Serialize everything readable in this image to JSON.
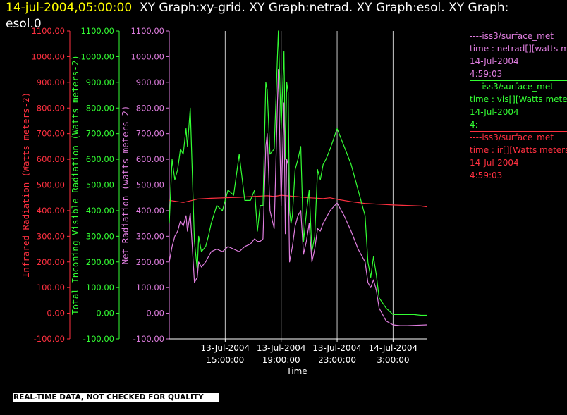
{
  "header": {
    "timestamp": "14-jul-2004,05:00:00",
    "title_rest": "XY Graph:xy-grid.  XY Graph:netrad.  XY Graph:esol.  XY Graph:",
    "title_line2": "esol.0"
  },
  "legend": [
    {
      "lines": [
        "----iss3/surface_met",
        "time : netrad[][watts meters-2]",
        "14-Jul-2004",
        "4:59:03"
      ],
      "color": "#e07ee0"
    },
    {
      "lines": [
        "----iss3/surface_met",
        "time : vis[][Watts meters-2]",
        "14-Jul-2004",
        "4:"
      ],
      "color": "#33ff33"
    },
    {
      "lines": [
        "----iss3/surface_met",
        "time : ir[][Watts meters-2]",
        "14-Jul-2004",
        "4:59:03"
      ],
      "color": "#ff3040"
    }
  ],
  "notice": "REAL-TIME DATA, NOT CHECKED FOR QUALITY",
  "colors": {
    "ir": "#ff3040",
    "vis": "#33ff33",
    "netrad": "#e07ee0",
    "text": "#ffffff",
    "grid": "#c8c8c8"
  },
  "chart_data": {
    "type": "line",
    "xlabel": "Time",
    "x_ticks": [
      {
        "hour": 15,
        "label": [
          "13-Jul-2004",
          "15:00:00"
        ]
      },
      {
        "hour": 19,
        "label": [
          "13-Jul-2004",
          "19:00:00"
        ]
      },
      {
        "hour": 23,
        "label": [
          "13-Jul-2004",
          "23:00:00"
        ]
      },
      {
        "hour": 27,
        "label": [
          "14-Jul-2004",
          "3:00:00"
        ]
      }
    ],
    "xlim_hours": [
      11.0,
      29.4
    ],
    "grid_x_hours": [
      15,
      19,
      23,
      27
    ],
    "y_axes": [
      {
        "key": "ir",
        "label": "Infrared Radiation (Watts meters-2)",
        "ylim": [
          -100,
          1100
        ],
        "ticks": [
          "-100.00",
          "0.00",
          "100.00",
          "200.00",
          "300.00",
          "400.00",
          "500.00",
          "600.00",
          "700.00",
          "800.00",
          "900.00",
          "1000.00",
          "1100.00"
        ]
      },
      {
        "key": "vis",
        "label": "Total Incoming Visible Radiation (Watts meters-2)",
        "ylim": [
          -100,
          1100
        ],
        "ticks": [
          "-100.00",
          "0.00",
          "100.00",
          "200.00",
          "300.00",
          "400.00",
          "500.00",
          "600.00",
          "700.00",
          "800.00",
          "900.00",
          "1000.00",
          "1100.00"
        ]
      },
      {
        "key": "netrad",
        "label": "Net Radiation (watts meters-2)",
        "ylim": [
          -100,
          1100
        ],
        "ticks": [
          "-100.00",
          "0.00",
          "100.00",
          "200.00",
          "300.00",
          "400.00",
          "500.00",
          "600.00",
          "700.00",
          "800.00",
          "900.00",
          "1000.00",
          "1100.00"
        ]
      }
    ],
    "series": [
      {
        "key": "ir",
        "x": [
          11.0,
          11.5,
          12.0,
          12.5,
          13.0,
          14.0,
          15.0,
          16.0,
          17.0,
          18.0,
          18.5,
          19.0,
          20.0,
          21.0,
          22.0,
          22.5,
          23.0,
          24.0,
          25.0,
          26.0,
          27.0,
          28.0,
          29.0,
          29.4
        ],
        "y": [
          440,
          436,
          432,
          438,
          445,
          448,
          450,
          452,
          455,
          458,
          455,
          460,
          455,
          450,
          447,
          450,
          444,
          435,
          428,
          425,
          422,
          420,
          418,
          415
        ]
      },
      {
        "key": "vis",
        "x": [
          11.0,
          11.2,
          11.4,
          11.6,
          11.8,
          12.0,
          12.2,
          12.3,
          12.5,
          12.8,
          13.0,
          13.1,
          13.3,
          13.6,
          13.8,
          14.0,
          14.4,
          14.8,
          15.2,
          15.6,
          16.0,
          16.4,
          16.8,
          17.1,
          17.3,
          17.5,
          17.7,
          17.9,
          18.0,
          18.2,
          18.5,
          18.8,
          19.0,
          19.2,
          19.3,
          19.4,
          19.5,
          19.6,
          19.7,
          19.8,
          20.0,
          20.2,
          20.4,
          20.6,
          20.8,
          21.0,
          21.2,
          21.4,
          21.6,
          21.8,
          22.0,
          22.2,
          22.5,
          23.0,
          23.5,
          24.0,
          24.5,
          25.0,
          25.2,
          25.4,
          25.6,
          25.8,
          26.0,
          26.5,
          27.0,
          27.5,
          28.0,
          28.5,
          29.0,
          29.4
        ],
        "y": [
          350,
          600,
          520,
          560,
          640,
          620,
          720,
          650,
          800,
          280,
          170,
          300,
          240,
          260,
          300,
          350,
          420,
          400,
          480,
          460,
          620,
          440,
          440,
          480,
          320,
          420,
          420,
          900,
          870,
          620,
          640,
          1100,
          720,
          1020,
          600,
          900,
          860,
          400,
          350,
          380,
          560,
          600,
          650,
          280,
          390,
          480,
          240,
          300,
          560,
          520,
          580,
          600,
          640,
          720,
          650,
          580,
          480,
          380,
          200,
          140,
          220,
          150,
          60,
          20,
          -5,
          -5,
          -5,
          -5,
          -8,
          -8
        ]
      },
      {
        "key": "netrad",
        "x": [
          11.0,
          11.2,
          11.4,
          11.6,
          11.8,
          12.0,
          12.2,
          12.3,
          12.5,
          12.8,
          13.0,
          13.1,
          13.3,
          13.6,
          13.8,
          14.0,
          14.4,
          14.8,
          15.2,
          15.6,
          16.0,
          16.4,
          16.8,
          17.1,
          17.3,
          17.5,
          17.7,
          17.9,
          18.0,
          18.2,
          18.5,
          18.8,
          19.0,
          19.2,
          19.3,
          19.4,
          19.5,
          19.6,
          19.7,
          19.8,
          20.0,
          20.2,
          20.4,
          20.6,
          20.8,
          21.0,
          21.2,
          21.4,
          21.6,
          21.8,
          22.0,
          22.2,
          22.5,
          23.0,
          23.5,
          24.0,
          24.5,
          25.0,
          25.2,
          25.4,
          25.6,
          25.8,
          26.0,
          26.5,
          27.0,
          27.5,
          28.0,
          28.5,
          29.0,
          29.4
        ],
        "y": [
          200,
          260,
          300,
          320,
          360,
          340,
          380,
          320,
          390,
          120,
          140,
          200,
          180,
          200,
          220,
          240,
          250,
          240,
          260,
          250,
          240,
          260,
          270,
          290,
          280,
          280,
          290,
          650,
          700,
          400,
          330,
          950,
          420,
          820,
          310,
          600,
          580,
          200,
          230,
          260,
          340,
          380,
          400,
          230,
          280,
          350,
          200,
          250,
          330,
          320,
          350,
          370,
          400,
          430,
          380,
          320,
          250,
          200,
          120,
          100,
          130,
          90,
          20,
          -30,
          -45,
          -48,
          -48,
          -47,
          -46,
          -45
        ]
      }
    ]
  }
}
